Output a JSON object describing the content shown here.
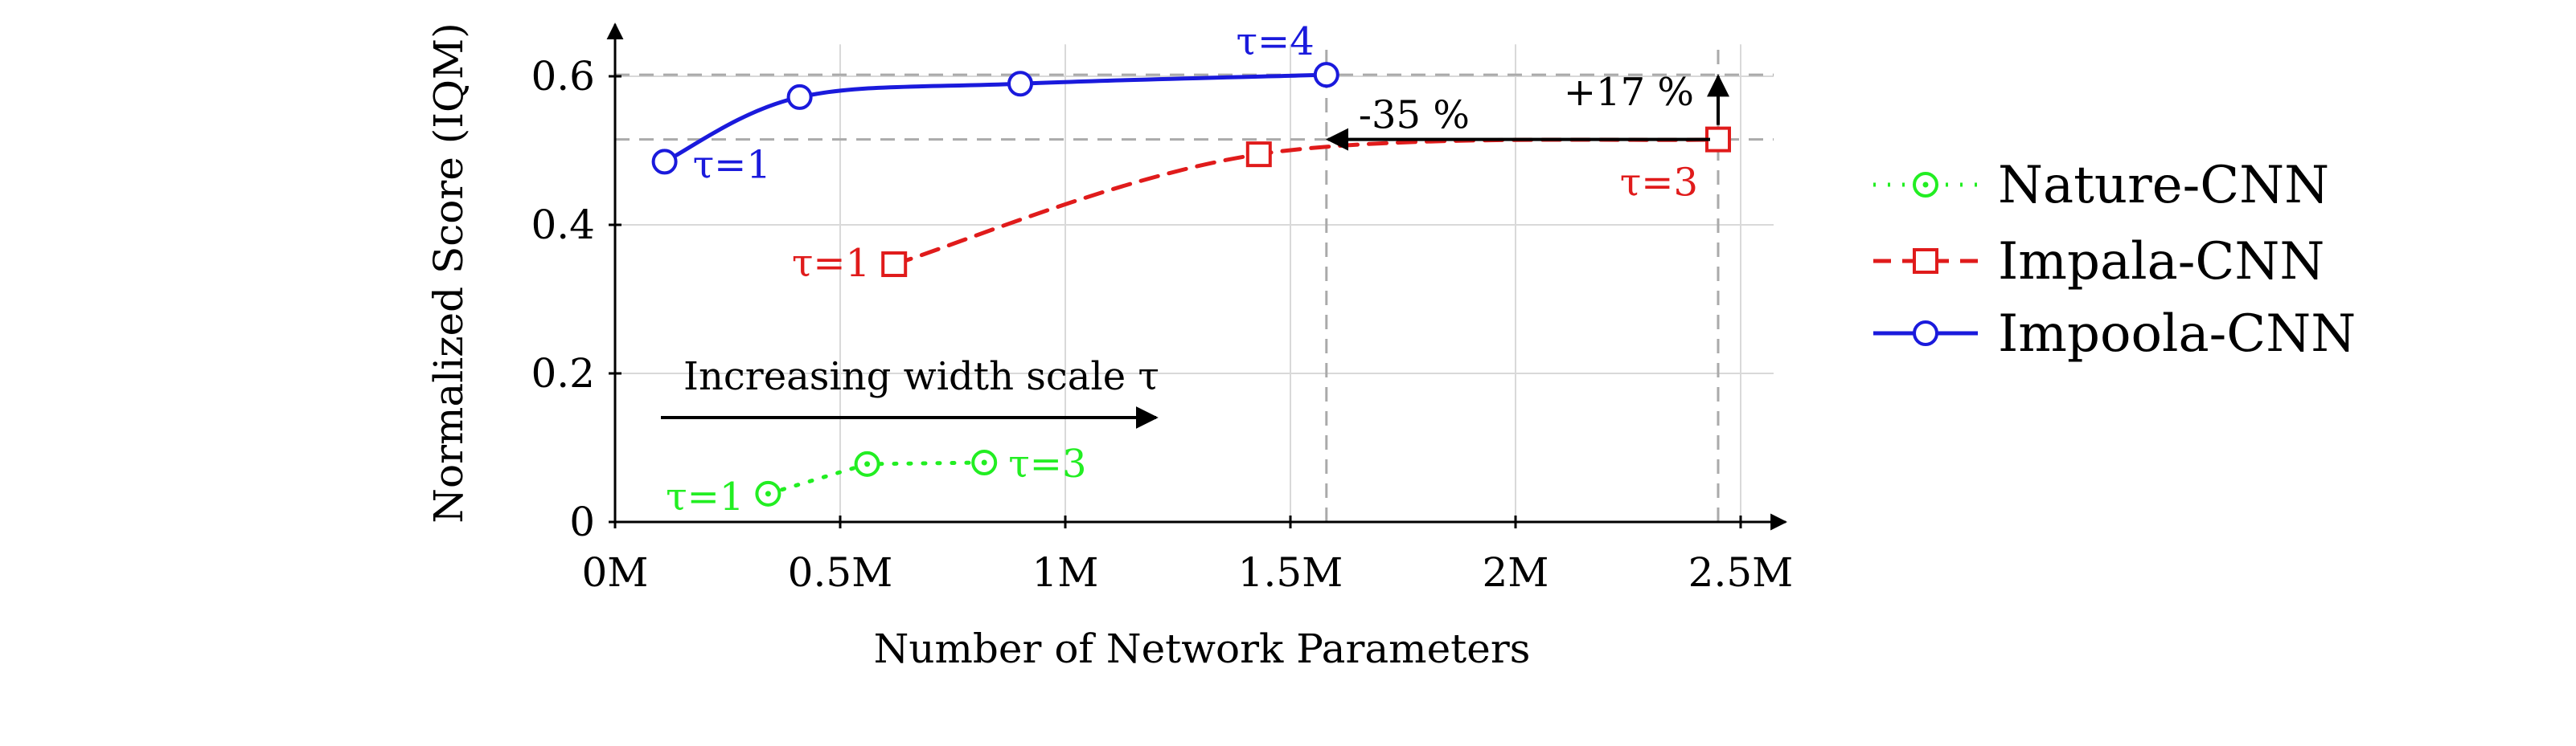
{
  "chart_data": {
    "type": "line",
    "title": "",
    "xlabel": "Number of Network Parameters",
    "ylabel": "Normalized Score (IQM)",
    "xlim": [
      0,
      2.6
    ],
    "ylim": [
      0,
      0.67
    ],
    "x_unit": "M parameters",
    "xticks": [
      {
        "value": 0,
        "label": "0M"
      },
      {
        "value": 0.5,
        "label": "0.5M"
      },
      {
        "value": 1,
        "label": "1M"
      },
      {
        "value": 1.5,
        "label": "1.5M"
      },
      {
        "value": 2,
        "label": "2M"
      },
      {
        "value": 2.5,
        "label": "2.5M"
      }
    ],
    "yticks": [
      {
        "value": 0,
        "label": "0"
      },
      {
        "value": 0.2,
        "label": "0.2"
      },
      {
        "value": 0.4,
        "label": "0.4"
      },
      {
        "value": 0.6,
        "label": "0.6"
      }
    ],
    "grid": true,
    "legend_position": "right",
    "series": [
      {
        "name": "Nature-CNN",
        "color": "#22ee22",
        "line_style": "dotted",
        "marker": "dotted-circle",
        "points": [
          {
            "x": 0.34,
            "y": 0.038
          },
          {
            "x": 0.56,
            "y": 0.078
          },
          {
            "x": 0.82,
            "y": 0.08
          }
        ],
        "smooth": false
      },
      {
        "name": "Impala-CNN",
        "color": "#e01b1b",
        "line_style": "dashed",
        "marker": "square",
        "points": [
          {
            "x": 0.62,
            "y": 0.347
          },
          {
            "x": 1.43,
            "y": 0.495
          },
          {
            "x": 2.45,
            "y": 0.515
          }
        ],
        "smooth": true
      },
      {
        "name": "Impoola-CNN",
        "color": "#1a1adc",
        "line_style": "solid",
        "marker": "circle",
        "points": [
          {
            "x": 0.11,
            "y": 0.485
          },
          {
            "x": 0.41,
            "y": 0.572
          },
          {
            "x": 0.9,
            "y": 0.59
          },
          {
            "x": 1.58,
            "y": 0.602
          }
        ],
        "smooth": true
      }
    ],
    "annotations": [
      {
        "text": "τ=1",
        "series": "Impoola-CNN",
        "x": 0.11,
        "y": 0.485,
        "color": "#1a1adc"
      },
      {
        "text": "τ=4",
        "series": "Impoola-CNN",
        "x": 1.58,
        "y": 0.602,
        "color": "#1a1adc"
      },
      {
        "text": "τ=1",
        "series": "Impala-CNN",
        "x": 0.62,
        "y": 0.347,
        "color": "#e01b1b"
      },
      {
        "text": "τ=3",
        "series": "Impala-CNN",
        "x": 2.45,
        "y": 0.515,
        "color": "#e01b1b"
      },
      {
        "text": "τ=1",
        "series": "Nature-CNN",
        "x": 0.34,
        "y": 0.038,
        "color": "#22ee22"
      },
      {
        "text": "τ=3",
        "series": "Nature-CNN",
        "x": 0.82,
        "y": 0.08,
        "color": "#22ee22"
      },
      {
        "text": "+17 %",
        "color": "#000000"
      },
      {
        "text": "-35 %",
        "color": "#000000"
      },
      {
        "text": "Increasing width scale τ",
        "color": "#000000"
      }
    ],
    "reference_lines": {
      "horizontal": [
        0.602,
        0.515
      ],
      "vertical": [
        1.58,
        2.45
      ]
    }
  }
}
